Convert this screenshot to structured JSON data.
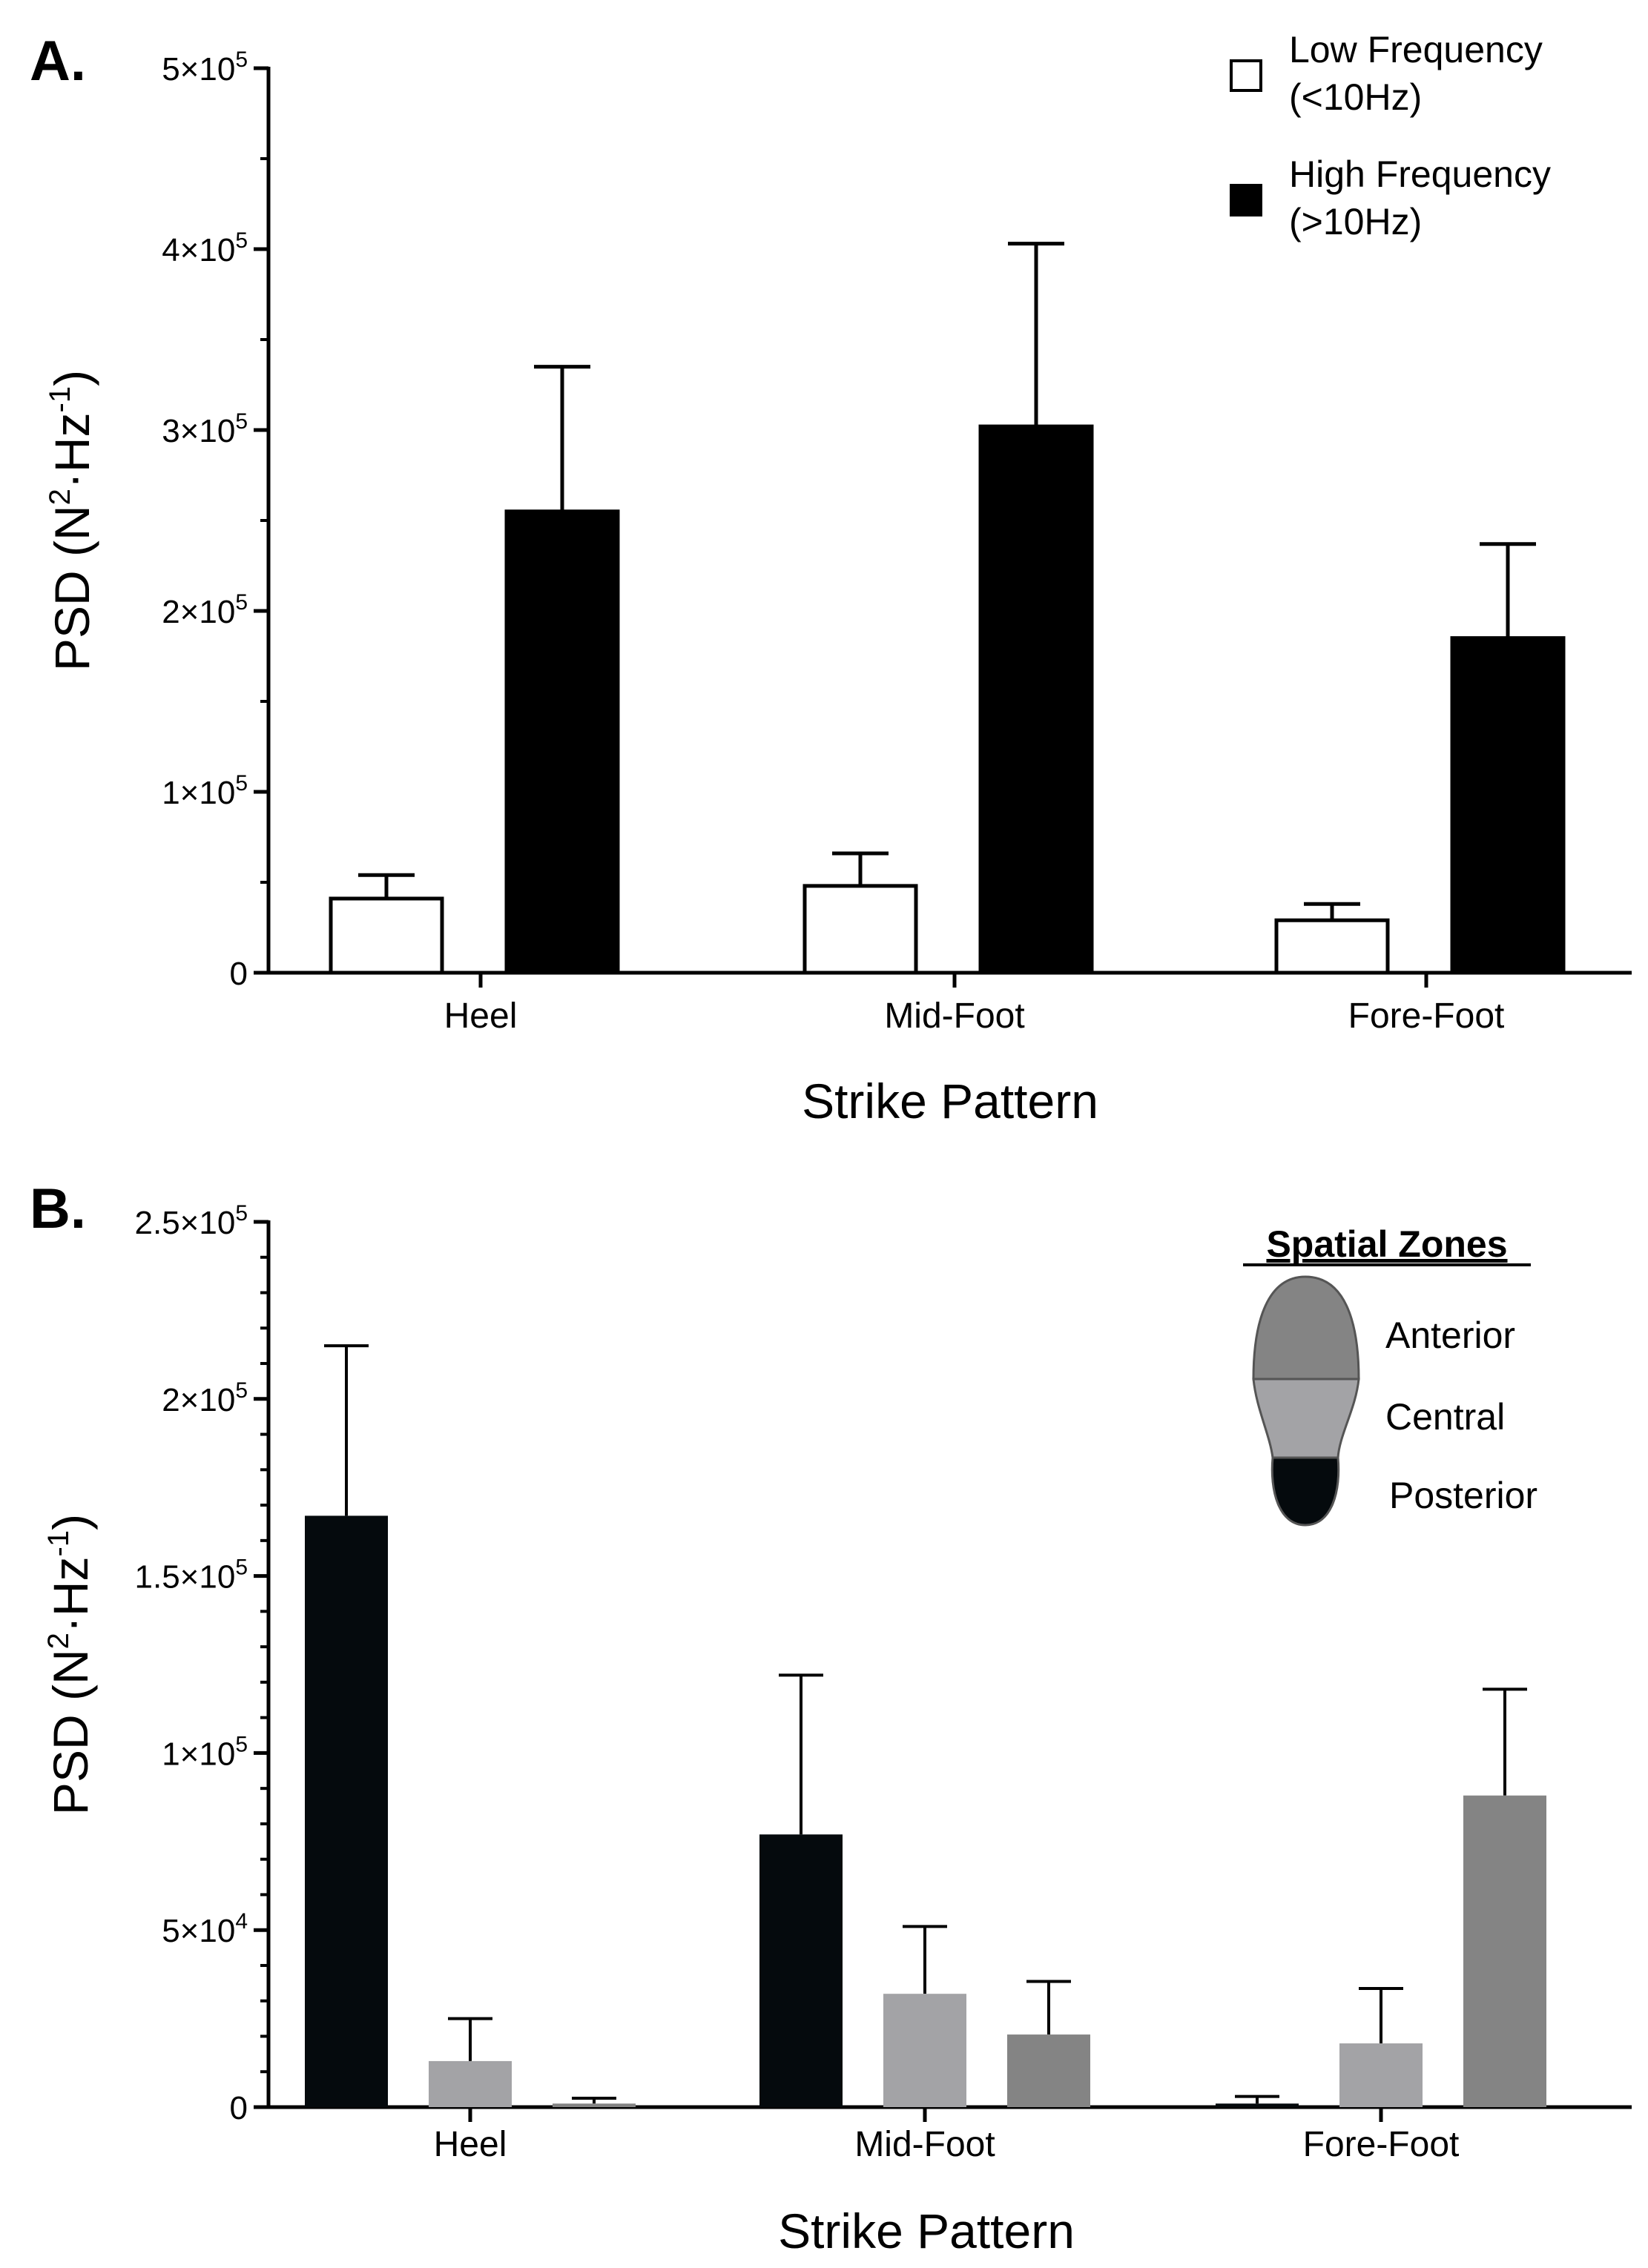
{
  "chart_data": [
    {
      "type": "bar",
      "panel_label": "A.",
      "title": "",
      "xlabel": "Strike Pattern",
      "ylabel": "PSD (N^2·Hz^-1)",
      "categories": [
        "Heel",
        "Mid-Foot",
        "Fore-Foot"
      ],
      "ylim": [
        0,
        500000
      ],
      "yticks": [
        {
          "value": 0,
          "mant": "0",
          "exp": ""
        },
        {
          "value": 100000,
          "mant": "1",
          "exp": "5"
        },
        {
          "value": 200000,
          "mant": "2",
          "exp": "5"
        },
        {
          "value": 300000,
          "mant": "3",
          "exp": "5"
        },
        {
          "value": 400000,
          "mant": "4",
          "exp": "5"
        },
        {
          "value": 500000,
          "mant": "5",
          "exp": "5"
        }
      ],
      "series": [
        {
          "name": "Low Frequency (<10Hz)",
          "legend_lines": [
            "Low Frequency",
            "(<10Hz)"
          ],
          "color": "#ffffff",
          "stroke": "#000000",
          "values": [
            41000,
            48000,
            29000
          ],
          "errors": [
            13000,
            18000,
            9000
          ]
        },
        {
          "name": "High Frequency (>10Hz)",
          "legend_lines": [
            "High Frequency",
            "(>10Hz)"
          ],
          "color": "#000000",
          "stroke": "#000000",
          "values": [
            255000,
            302000,
            185000
          ],
          "errors": [
            80000,
            101000,
            52000
          ]
        }
      ],
      "legend_position": "top-right"
    },
    {
      "type": "bar",
      "panel_label": "B.",
      "title": "",
      "xlabel": "Strike Pattern",
      "ylabel": "PSD (N^2·Hz^-1)",
      "categories": [
        "Heel",
        "Mid-Foot",
        "Fore-Foot"
      ],
      "ylim": [
        0,
        250000
      ],
      "yticks": [
        {
          "value": 0,
          "mant": "0",
          "exp": ""
        },
        {
          "value": 50000,
          "mant": "5",
          "exp": "4"
        },
        {
          "value": 100000,
          "mant": "1",
          "exp": "5"
        },
        {
          "value": 150000,
          "mant": "1.5",
          "exp": "5"
        },
        {
          "value": 200000,
          "mant": "2",
          "exp": "5"
        },
        {
          "value": 250000,
          "mant": "2.5",
          "exp": "5"
        }
      ],
      "series": [
        {
          "name": "Posterior",
          "color": "#050a0d",
          "values": [
            167000,
            77000,
            1000
          ],
          "errors": [
            48000,
            45000,
            2000
          ]
        },
        {
          "name": "Central",
          "color": "#a3a3a6",
          "values": [
            13000,
            32000,
            18000
          ],
          "errors": [
            12000,
            19000,
            15500
          ]
        },
        {
          "name": "Anterior",
          "color": "#848484",
          "values": [
            1000,
            20500,
            88000
          ],
          "errors": [
            1500,
            15000,
            30000
          ]
        }
      ],
      "legend_title": "Spatial Zones",
      "legend_items": [
        "Anterior",
        "Central",
        "Posterior"
      ],
      "legend_position": "top-right"
    }
  ]
}
